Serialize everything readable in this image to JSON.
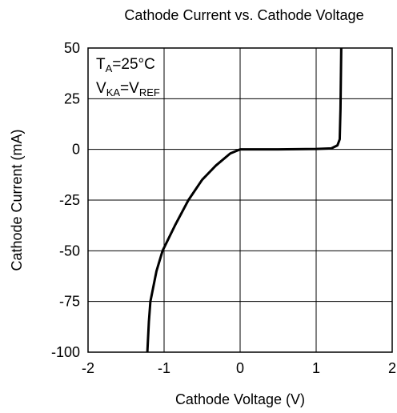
{
  "chart_data": {
    "type": "line",
    "title": "Cathode Current vs. Cathode Voltage",
    "x_label": "Cathode Voltage  (V)",
    "y_label": "Cathode  Current (mA)",
    "annotations": [
      [
        {
          "text": "T"
        },
        {
          "text": "A",
          "sub": true
        },
        {
          "text": "=25°C"
        }
      ],
      [
        {
          "text": "V"
        },
        {
          "text": "KA",
          "sub": true
        },
        {
          "text": "=V"
        },
        {
          "text": "REF",
          "sub": true
        }
      ]
    ],
    "xlim": [
      -2,
      2
    ],
    "xticks": [
      -2,
      -1,
      0,
      1,
      2
    ],
    "ylim": [
      -100,
      50
    ],
    "yticks": [
      -100,
      -75,
      -50,
      -25,
      0,
      25,
      50
    ],
    "grid": true,
    "series": [
      {
        "name": null,
        "color": "#000000",
        "x": [
          -1.22,
          -1.2,
          -1.18,
          -1.1,
          -1.02,
          -0.85,
          -0.68,
          -0.5,
          -0.32,
          -0.13,
          0,
          0.5,
          1.0,
          1.2,
          1.28,
          1.31,
          1.32,
          1.33
        ],
        "values": [
          -100,
          -85,
          -75,
          -60,
          -50,
          -37,
          -25,
          -15,
          -8,
          -2,
          0,
          0,
          0.2,
          0.5,
          2,
          5,
          20,
          50
        ]
      }
    ]
  }
}
